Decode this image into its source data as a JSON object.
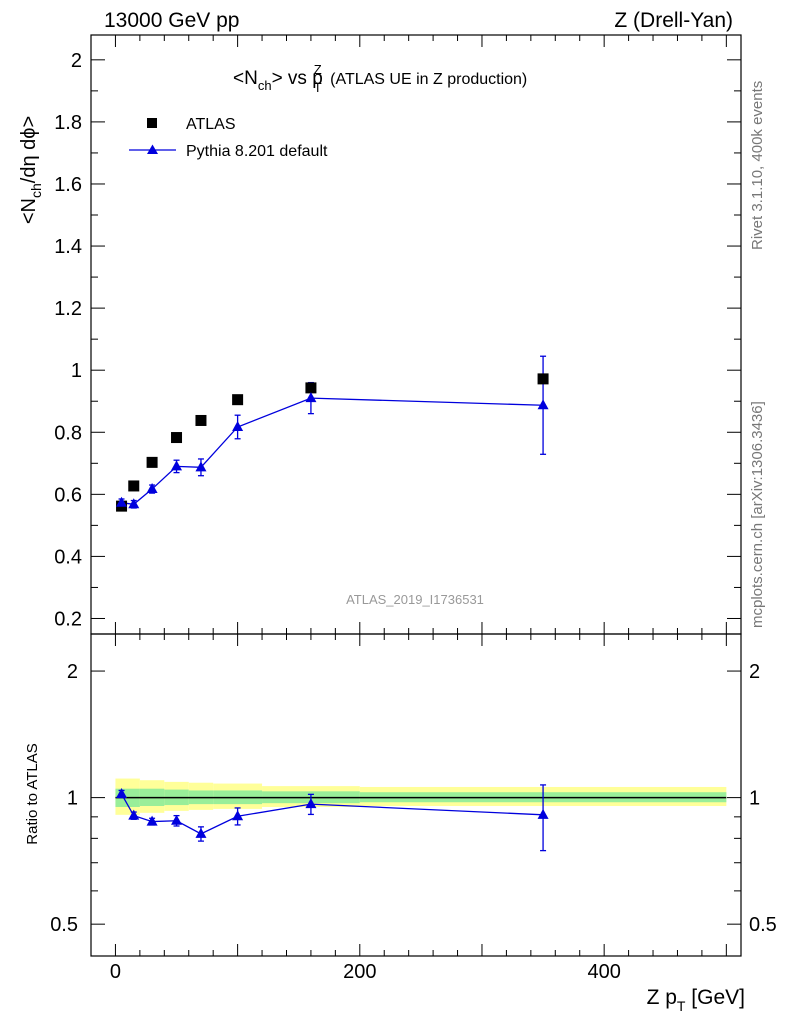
{
  "header": {
    "left": "13000 GeV pp",
    "right": "Z (Drell-Yan)"
  },
  "side_labels": {
    "rivet": "Rivet 3.1.10,  400k events",
    "source": "mcplots.cern.ch [arXiv:1306.3436]"
  },
  "watermark": "ATLAS_2019_I1736531",
  "chart_data": [
    {
      "type": "scatter",
      "panel": "main",
      "title": "<N_ch> vs p_T^Z (ATLAS UE in Z production)",
      "ylabel": "<N_ch/dη dϕ>",
      "xlim": [
        -20,
        512
      ],
      "ylim": [
        0.15,
        2.08
      ],
      "yticks": [
        0.2,
        0.4,
        0.6,
        0.8,
        1,
        1.2,
        1.4,
        1.6,
        1.8,
        2
      ],
      "ytick_labels": [
        "0.2",
        "0.4",
        "0.6",
        "0.8",
        "1",
        "1.2",
        "1.4",
        "1.6",
        "1.8",
        "2"
      ],
      "legend_position": "top-left",
      "series": [
        {
          "name": "ATLAS",
          "marker": "square",
          "color": "#000000",
          "x": [
            5,
            15,
            30,
            50,
            70,
            100,
            160,
            350
          ],
          "y": [
            0.562,
            0.627,
            0.703,
            0.783,
            0.838,
            0.905,
            0.943,
            0.972
          ]
        },
        {
          "name": "Pythia 8.201 default",
          "marker": "triangle",
          "color": "#0000dd",
          "x": [
            5,
            15,
            30,
            50,
            70,
            100,
            160,
            350
          ],
          "y": [
            0.573,
            0.568,
            0.617,
            0.69,
            0.687,
            0.817,
            0.91,
            0.887
          ],
          "yerr": [
            0.012,
            0.012,
            0.013,
            0.02,
            0.027,
            0.038,
            0.05,
            0.158
          ]
        }
      ]
    },
    {
      "type": "line",
      "panel": "ratio",
      "ylabel": "Ratio to ATLAS",
      "xlabel": "Z p_T [GeV]",
      "xlim": [
        -20,
        512
      ],
      "ylim": [
        0.42,
        2.45
      ],
      "log_y": true,
      "yticks": [
        0.5,
        1,
        2
      ],
      "ytick_labels": [
        "0.5",
        "1",
        "2"
      ],
      "xticks": [
        0,
        200,
        400
      ],
      "xtick_labels": [
        "0",
        "200",
        "400"
      ],
      "reference_line": 1,
      "bands": [
        {
          "x0": 0,
          "x1": 20,
          "y_lo": 0.91,
          "y_hi": 1.11,
          "g_lo": 0.95,
          "g_hi": 1.05
        },
        {
          "x0": 20,
          "x1": 40,
          "y_lo": 0.92,
          "y_hi": 1.1,
          "g_lo": 0.955,
          "g_hi": 1.05
        },
        {
          "x0": 40,
          "x1": 60,
          "y_lo": 0.93,
          "y_hi": 1.09,
          "g_lo": 0.96,
          "g_hi": 1.045
        },
        {
          "x0": 60,
          "x1": 80,
          "y_lo": 0.935,
          "y_hi": 1.085,
          "g_lo": 0.965,
          "g_hi": 1.04
        },
        {
          "x0": 80,
          "x1": 120,
          "y_lo": 0.94,
          "y_hi": 1.08,
          "g_lo": 0.965,
          "g_hi": 1.04
        },
        {
          "x0": 120,
          "x1": 200,
          "y_lo": 0.95,
          "y_hi": 1.065,
          "g_lo": 0.97,
          "g_hi": 1.035
        },
        {
          "x0": 200,
          "x1": 500,
          "y_lo": 0.955,
          "y_hi": 1.06,
          "g_lo": 0.975,
          "g_hi": 1.03
        }
      ],
      "series": [
        {
          "name": "Pythia 8.201 default",
          "marker": "triangle",
          "color": "#0000dd",
          "x": [
            5,
            15,
            30,
            50,
            70,
            100,
            160,
            350
          ],
          "y": [
            1.02,
            0.906,
            0.877,
            0.881,
            0.82,
            0.903,
            0.965,
            0.91
          ],
          "yerr": [
            0.02,
            0.018,
            0.016,
            0.025,
            0.032,
            0.042,
            0.053,
            0.162
          ]
        }
      ]
    }
  ],
  "colors": {
    "band_outer": "#ffff99",
    "band_inner": "#99ee99",
    "watermark": "#999999"
  }
}
